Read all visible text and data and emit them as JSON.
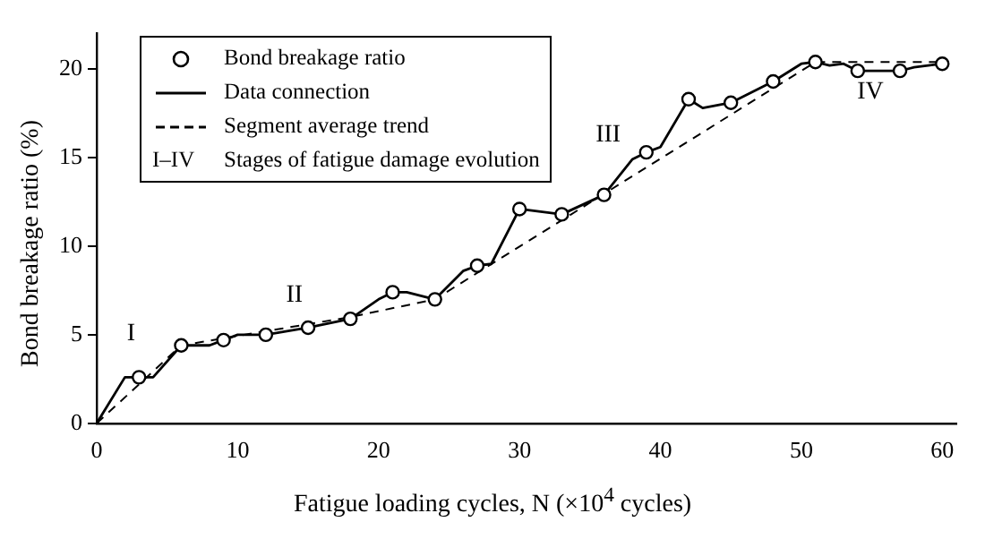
{
  "chart_data": {
    "type": "line",
    "xlabel": "Fatigue loading cycles, N (×10$^{4}$ cycles)",
    "ylabel": "Bond breakage ratio (%)",
    "xlim": [
      0,
      61
    ],
    "xticks": [
      0,
      10,
      20,
      30,
      40,
      50,
      60
    ],
    "ylim": [
      0,
      22
    ],
    "yticks": [
      0,
      5,
      10,
      15,
      20
    ],
    "grid": false,
    "legend": "top left",
    "series": [
      {
        "name": "Bond breakage ratio",
        "type": "scatter",
        "marker": "circle",
        "color": "#000000",
        "x": [
          3,
          6,
          9,
          12,
          15,
          18,
          21,
          24,
          27,
          30,
          33,
          36,
          39,
          42,
          45,
          48,
          51,
          54,
          57,
          60
        ],
        "values": [
          2.6,
          4.4,
          4.7,
          5.0,
          5.4,
          5.9,
          7.4,
          7.0,
          8.9,
          12.1,
          11.8,
          12.9,
          15.3,
          18.3,
          18.1,
          19.3,
          20.4,
          19.9,
          19.9,
          20.3
        ]
      },
      {
        "name": "Data connection",
        "type": "line",
        "marker": "none",
        "line_style": "solid",
        "color": "#000000",
        "x": [
          0,
          2,
          3,
          4,
          6,
          8,
          9,
          10,
          12,
          15,
          18,
          20,
          21,
          22,
          24,
          26,
          27,
          28,
          30,
          33,
          36,
          38,
          39,
          40,
          42,
          43,
          45,
          48,
          50,
          51,
          52,
          53,
          54,
          57,
          58,
          60
        ],
        "values": [
          0,
          2.6,
          2.6,
          2.6,
          4.4,
          4.4,
          4.7,
          5.0,
          5.0,
          5.4,
          5.9,
          7.0,
          7.4,
          7.4,
          7.0,
          8.6,
          8.9,
          9.0,
          12.1,
          11.8,
          12.9,
          14.9,
          15.3,
          15.6,
          18.3,
          17.8,
          18.1,
          19.3,
          20.3,
          20.4,
          20.2,
          20.3,
          19.9,
          19.9,
          20.1,
          20.3
        ]
      },
      {
        "name": "Segment average trend",
        "type": "line",
        "marker": "none",
        "line_style": "dashed",
        "color": "#000000",
        "x": [
          0,
          6,
          18,
          24,
          51,
          60
        ],
        "values": [
          0,
          4.4,
          6.0,
          7.0,
          20.4,
          20.4
        ]
      }
    ],
    "annotations": [
      "I",
      "II",
      "III",
      "IV",
      "I–IV Stages of fatigue damage evolution"
    ]
  }
}
